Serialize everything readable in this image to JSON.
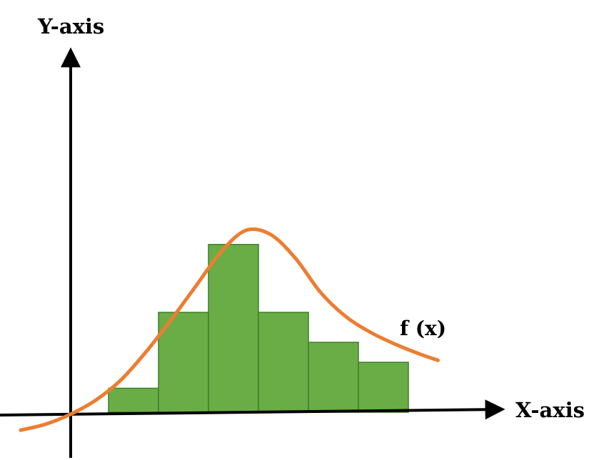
{
  "chart_data": {
    "type": "bar",
    "xlabel": "X-axis",
    "ylabel": "Y-axis",
    "bins": [
      {
        "x0": 1.0,
        "x1": 2.0,
        "value": 0.6
      },
      {
        "x0": 2.0,
        "x1": 3.0,
        "value": 2.5
      },
      {
        "x0": 3.0,
        "x1": 4.0,
        "value": 4.2
      },
      {
        "x0": 4.0,
        "x1": 5.0,
        "value": 2.5
      },
      {
        "x0": 5.0,
        "x1": 6.0,
        "value": 1.75
      },
      {
        "x0": 6.0,
        "x1": 7.0,
        "value": 1.25
      }
    ],
    "curve": {
      "label": "f (x)",
      "points": [
        [
          -1.0,
          -0.45
        ],
        [
          -0.5,
          -0.3
        ],
        [
          0.0,
          -0.05
        ],
        [
          0.5,
          0.3
        ],
        [
          1.0,
          0.8
        ],
        [
          1.5,
          1.5
        ],
        [
          2.0,
          2.3
        ],
        [
          2.5,
          3.15
        ],
        [
          3.0,
          4.0
        ],
        [
          3.5,
          4.55
        ],
        [
          4.0,
          4.45
        ],
        [
          4.5,
          3.85
        ],
        [
          5.0,
          3.0
        ],
        [
          5.5,
          2.4
        ],
        [
          6.0,
          2.0
        ],
        [
          6.5,
          1.7
        ],
        [
          7.0,
          1.45
        ],
        [
          7.35,
          1.3
        ]
      ]
    },
    "colors": {
      "bar_fill": "#6aad46",
      "bar_stroke": "#3f7f2a",
      "curve": "#ed7d31",
      "axis": "#000000"
    }
  }
}
